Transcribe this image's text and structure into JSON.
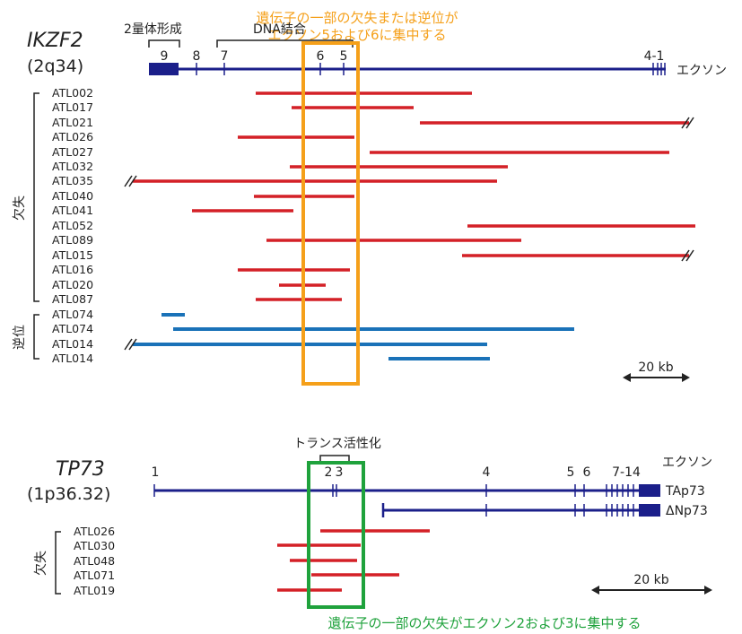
{
  "ikzf2": {
    "gene": "IKZF2",
    "locus": "(2q34)",
    "domain_dimerization": "2量体形成",
    "domain_dna": "DNA結合",
    "annotation": "遺伝子の一部の欠失または逆位が",
    "annotation_line2": "エクソン5および6に集中する",
    "exon_label": "エクソン",
    "exons": [
      "9",
      "8",
      "7",
      "6",
      "5",
      "4-1"
    ],
    "group_deletion": "欠失",
    "group_inversion": "逆位",
    "deletion_samples": [
      "ATL002",
      "ATL017",
      "ATL021",
      "ATL026",
      "ATL027",
      "ATL032",
      "ATL035",
      "ATL040",
      "ATL041",
      "ATL052",
      "ATL089",
      "ATL015",
      "ATL016",
      "ATL020",
      "ATL087"
    ],
    "inversion_samples": [
      "ATL074",
      "ATL074",
      "ATL014",
      "ATL014"
    ],
    "scale": "20 kb"
  },
  "tp73": {
    "gene": "TP73",
    "locus": "(1p36.32)",
    "domain_transactivation": "トランス活性化",
    "exon_label": "エクソン",
    "exons": [
      "1",
      "2",
      "3",
      "4",
      "5",
      "6",
      "7-14"
    ],
    "isoform_ta": "TAp73",
    "isoform_dn": "ΔNp73",
    "group_deletion": "欠失",
    "deletion_samples": [
      "ATL026",
      "ATL030",
      "ATL048",
      "ATL071",
      "ATL019"
    ],
    "annotation": "遺伝子の一部の欠失がエクソン2および3に集中する",
    "scale": "20 kb"
  },
  "colors": {
    "gene_line": "#1b1f8a",
    "deletion": "#d42027",
    "inversion": "#1a72b8",
    "highlight_ikzf2": "#f5a01a",
    "highlight_tp73": "#1fa23c",
    "annotation_ikzf2": "#f5a01a",
    "annotation_tp73": "#1fa23c"
  }
}
